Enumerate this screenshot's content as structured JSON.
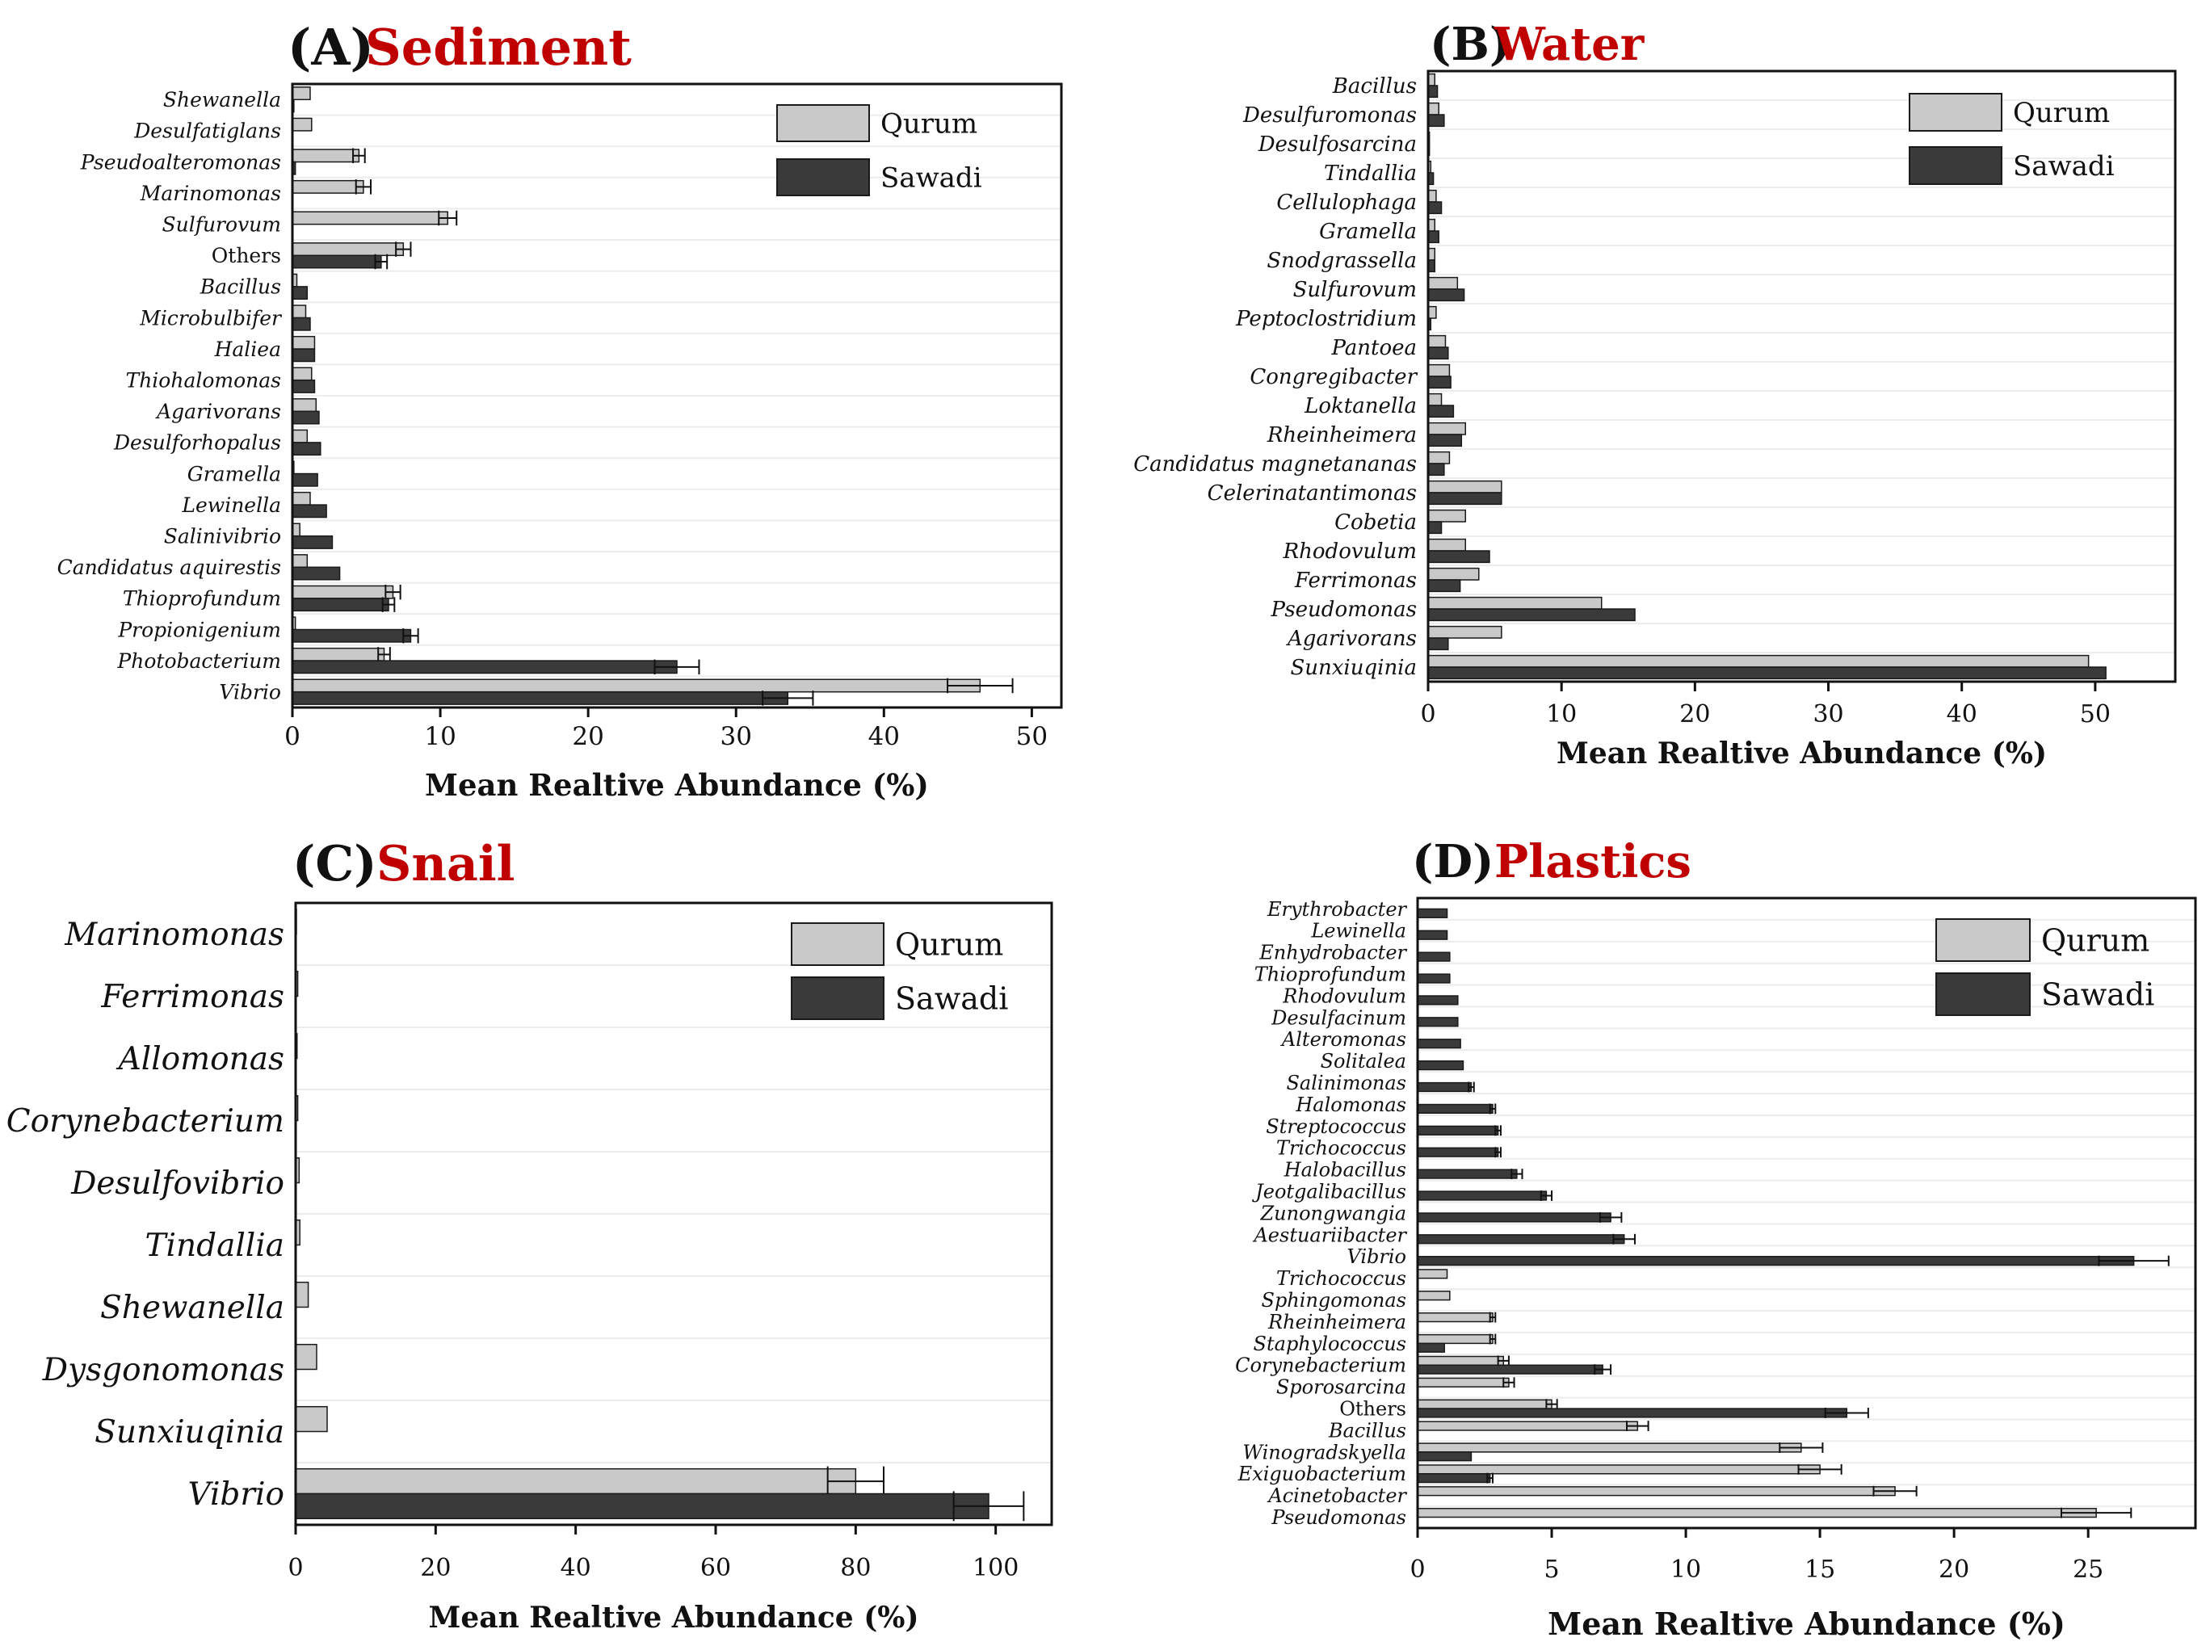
{
  "figure": {
    "series_names": [
      "Qurum",
      "Sawadi"
    ],
    "colors": {
      "qurum": "#c9c9c9",
      "sawadi": "#3a3a3a",
      "title_accent": "#c00000"
    }
  },
  "chart_data": [
    {
      "type": "bar",
      "orientation": "horizontal",
      "panel_letter": "(A)",
      "title": "Sediment",
      "xlabel": "Mean Realtive Abundance (%)",
      "xlim": [
        0,
        52
      ],
      "xticks": [
        "0",
        "10",
        "20",
        "30",
        "40",
        "50"
      ],
      "legend_position": "top-right",
      "categories": [
        "Shewanella",
        "Desulfatiglans",
        "Pseudoalteromonas",
        "Marinomonas",
        "Sulfurovum",
        "Others",
        "Bacillus",
        "Microbulbifer",
        "Haliea",
        "Thiohalomonas",
        "Agarivorans",
        "Desulforhopalus",
        "Gramella",
        "Lewinella",
        "Salinivibrio",
        "Candidatus aquirestis",
        "Thioprofundum",
        "Propionigenium",
        "Photobacterium",
        "Vibrio"
      ],
      "series": [
        {
          "name": "Qurum",
          "values": [
            1.2,
            1.3,
            4.5,
            4.8,
            10.5,
            7.5,
            0.3,
            0.9,
            1.5,
            1.3,
            1.6,
            1.0,
            0.1,
            1.2,
            0.5,
            1.0,
            6.8,
            0.2,
            6.2,
            46.5
          ],
          "errors": [
            0,
            0,
            0.4,
            0.5,
            0.6,
            0.5,
            0,
            0,
            0,
            0,
            0,
            0,
            0,
            0,
            0,
            0,
            0.5,
            0,
            0.4,
            2.2
          ]
        },
        {
          "name": "Sawadi",
          "values": [
            0.1,
            0,
            0.2,
            0,
            0,
            6.0,
            1.0,
            1.2,
            1.5,
            1.5,
            1.8,
            1.9,
            1.7,
            2.3,
            2.7,
            3.2,
            6.5,
            8.0,
            26.0,
            33.5
          ],
          "errors": [
            0,
            0,
            0,
            0,
            0,
            0.4,
            0,
            0,
            0,
            0,
            0,
            0,
            0,
            0,
            0,
            0,
            0.4,
            0.5,
            1.5,
            1.7
          ]
        }
      ]
    },
    {
      "type": "bar",
      "orientation": "horizontal",
      "panel_letter": "(B)",
      "title": "Water",
      "xlabel": "Mean Realtive Abundance (%)",
      "xlim": [
        0,
        56
      ],
      "xticks": [
        "0",
        "10",
        "20",
        "30",
        "40",
        "50"
      ],
      "legend_position": "top-right",
      "categories": [
        "Bacillus",
        "Desulfuromonas",
        "Desulfosarcina",
        "Tindallia",
        "Cellulophaga",
        "Gramella",
        "Snodgrassella",
        "Sulfurovum",
        "Peptoclostridium",
        "Pantoea",
        "Congregibacter",
        "Loktanella",
        "Rheinheimera",
        "Candidatus magnetananas",
        "Celerinatantimonas",
        "Cobetia",
        "Rhodovulum",
        "Ferrimonas",
        "Pseudomonas",
        "Agarivorans",
        "Sunxiuqinia"
      ],
      "series": [
        {
          "name": "Qurum",
          "values": [
            0.5,
            0.8,
            0.1,
            0.2,
            0.6,
            0.5,
            0.5,
            2.2,
            0.6,
            1.3,
            1.6,
            1.0,
            2.8,
            1.6,
            5.5,
            2.8,
            2.8,
            3.8,
            13.0,
            5.5,
            49.5
          ],
          "errors": [
            0,
            0,
            0,
            0,
            0,
            0,
            0,
            0,
            0,
            0,
            0,
            0,
            0,
            0,
            0,
            0,
            0,
            0,
            0,
            0,
            0
          ]
        },
        {
          "name": "Sawadi",
          "values": [
            0.7,
            1.2,
            0.1,
            0.4,
            1.0,
            0.8,
            0.5,
            2.7,
            0.2,
            1.5,
            1.7,
            1.9,
            2.5,
            1.2,
            5.5,
            1.0,
            4.6,
            2.4,
            15.5,
            1.5,
            50.8
          ],
          "errors": [
            0,
            0,
            0,
            0,
            0,
            0,
            0,
            0,
            0,
            0,
            0,
            0,
            0,
            0,
            0,
            0,
            0,
            0,
            0,
            0,
            0
          ]
        }
      ]
    },
    {
      "type": "bar",
      "orientation": "horizontal",
      "panel_letter": "(C)",
      "title": "Snail",
      "xlabel": "Mean Realtive Abundance (%)",
      "xlim": [
        0,
        108
      ],
      "xticks": [
        "0",
        "20",
        "40",
        "60",
        "80",
        "100"
      ],
      "legend_position": "top-right",
      "categories": [
        "Marinomonas",
        "Ferrimonas",
        "Allomonas",
        "Corynebacterium",
        "Desulfovibrio",
        "Tindallia",
        "Shewanella",
        "Dysgonomonas",
        "Sunxiuqinia",
        "Vibrio"
      ],
      "series": [
        {
          "name": "Qurum",
          "values": [
            0.1,
            0.3,
            0.2,
            0.3,
            0.5,
            0.6,
            1.8,
            3.0,
            4.5,
            80.0
          ],
          "errors": [
            0,
            0,
            0,
            0,
            0,
            0,
            0,
            0,
            0,
            4.0
          ]
        },
        {
          "name": "Sawadi",
          "values": [
            0,
            0,
            0,
            0,
            0,
            0,
            0,
            0,
            0,
            99.0
          ],
          "errors": [
            0,
            0,
            0,
            0,
            0,
            0,
            0,
            0,
            0,
            5.0
          ]
        }
      ]
    },
    {
      "type": "bar",
      "orientation": "horizontal",
      "panel_letter": "(D)",
      "title": "Plastics",
      "xlabel": "Mean Realtive Abundance (%)",
      "xlim": [
        0,
        29
      ],
      "xticks": [
        "0",
        "5",
        "10",
        "15",
        "20",
        "25"
      ],
      "legend_position": "top-right",
      "categories": [
        "Erythrobacter",
        "Lewinella",
        "Enhydrobacter",
        "Thioprofundum",
        "Rhodovulum",
        "Desulfacinum",
        "Alteromonas",
        "Solitalea",
        "Salinimonas",
        "Halomonas",
        "Streptococcus",
        "Trichococcus",
        "Halobacillus",
        "Jeotgalibacillus",
        "Zunongwangia",
        "Aestuariibacter",
        "Vibrio",
        "Trichococcus",
        "Sphingomonas",
        "Rheinheimera",
        "Staphylococcus",
        "Corynebacterium",
        "Sporosarcina",
        "Others",
        "Bacillus",
        "Winogradskyella",
        "Exiguobacterium",
        "Acinetobacter",
        "Pseudomonas"
      ],
      "series": [
        {
          "name": "Qurum",
          "values": [
            0,
            0,
            0,
            0,
            0,
            0,
            0,
            0,
            0,
            0,
            0,
            0,
            0,
            0,
            0,
            0,
            0,
            1.1,
            1.2,
            2.8,
            2.8,
            3.2,
            3.4,
            5.0,
            8.2,
            14.3,
            15.0,
            17.8,
            25.3
          ],
          "errors": [
            0,
            0,
            0,
            0,
            0,
            0,
            0,
            0,
            0,
            0,
            0,
            0,
            0,
            0,
            0,
            0,
            0,
            0,
            0,
            0.1,
            0.1,
            0.2,
            0.2,
            0.2,
            0.4,
            0.8,
            0.8,
            0.8,
            1.3
          ]
        },
        {
          "name": "Sawadi",
          "values": [
            1.1,
            1.1,
            1.2,
            1.2,
            1.5,
            1.5,
            1.6,
            1.7,
            2.0,
            2.8,
            3.0,
            3.0,
            3.7,
            4.8,
            7.2,
            7.7,
            26.7,
            0,
            0,
            0,
            1.0,
            6.9,
            0,
            16.0,
            0,
            2.0,
            2.7,
            0,
            0
          ],
          "errors": [
            0,
            0,
            0,
            0,
            0,
            0,
            0,
            0,
            0.1,
            0.1,
            0.1,
            0.1,
            0.2,
            0.2,
            0.4,
            0.4,
            1.3,
            0,
            0,
            0,
            0,
            0.3,
            0,
            0.8,
            0,
            0,
            0.1,
            0,
            0
          ]
        }
      ]
    }
  ]
}
